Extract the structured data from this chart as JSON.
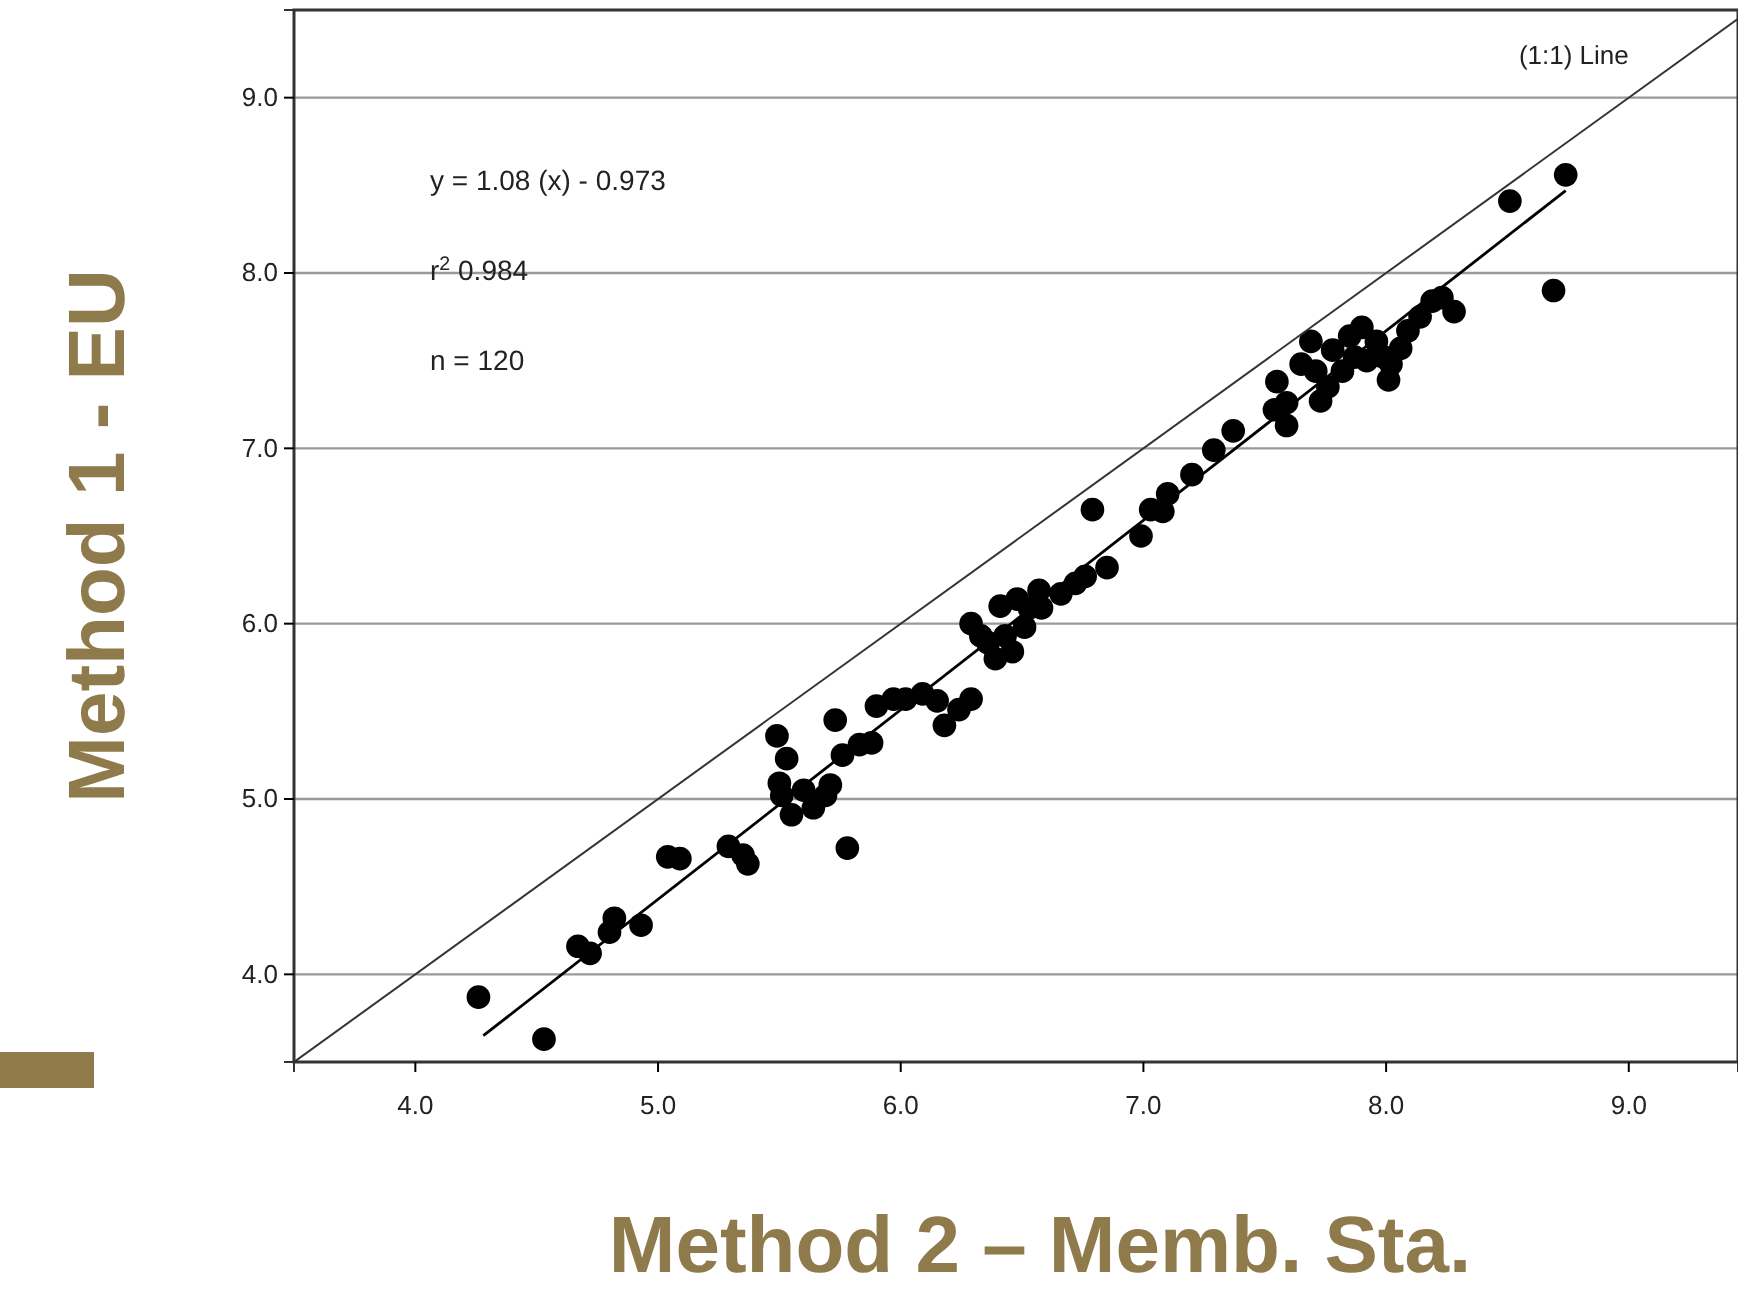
{
  "chart_data": {
    "type": "scatter",
    "xlabel": "Method 2 – Memb. Sta.",
    "ylabel": "Method 1 - EU",
    "xlim": [
      3.5,
      9.45
    ],
    "ylim": [
      3.5,
      9.5
    ],
    "xticks": [
      {
        "value": 4,
        "label": "4.0"
      },
      {
        "value": 5,
        "label": "5.0"
      },
      {
        "value": 6,
        "label": "6.0"
      },
      {
        "value": 7,
        "label": "7.0"
      },
      {
        "value": 8,
        "label": "8.0"
      },
      {
        "value": 9,
        "label": "9.0"
      }
    ],
    "yticks": [
      {
        "value": 4,
        "label": "4.0"
      },
      {
        "value": 5,
        "label": "5.0"
      },
      {
        "value": 6,
        "label": "6.0"
      },
      {
        "value": 7,
        "label": "7.0"
      },
      {
        "value": 8,
        "label": "8.0"
      },
      {
        "value": 9,
        "label": "9.0"
      }
    ],
    "grid": "y",
    "annotations": [
      "y = 1.08 (x) - 0.973",
      "r$^{2}$ 0.984",
      "n = 120"
    ],
    "series": [
      {
        "marker": "circle",
        "color": "#000000",
        "x": [
          4.26,
          4.53,
          4.67,
          4.72,
          4.8,
          4.82,
          4.93,
          5.04,
          5.09,
          5.29,
          5.35,
          5.37,
          5.49,
          5.51,
          5.5,
          5.53,
          5.55,
          5.6,
          5.64,
          5.69,
          5.71,
          5.73,
          5.76,
          5.78,
          5.83,
          5.88,
          5.9,
          5.97,
          6.02,
          6.09,
          6.15,
          6.18,
          6.24,
          6.29,
          6.29,
          6.33,
          6.36,
          6.39,
          6.41,
          6.43,
          6.46,
          6.48,
          6.51,
          6.53,
          6.57,
          6.58,
          6.66,
          6.72,
          6.76,
          6.79,
          6.85,
          6.99,
          7.03,
          7.08,
          7.1,
          7.2,
          7.29,
          7.37,
          7.54,
          7.55,
          7.59,
          7.59,
          7.65,
          7.69,
          7.71,
          7.73,
          7.76,
          7.78,
          7.82,
          7.85,
          7.87,
          7.9,
          7.92,
          7.96,
          7.99,
          8.02,
          8.01,
          8.06,
          8.09,
          8.14,
          8.19,
          8.23,
          8.28,
          8.51,
          8.69,
          8.74
        ],
        "values": [
          3.87,
          3.63,
          4.16,
          4.12,
          4.24,
          4.32,
          4.28,
          4.67,
          4.66,
          4.73,
          4.68,
          4.63,
          5.36,
          5.02,
          5.09,
          5.23,
          4.91,
          5.05,
          4.95,
          5.02,
          5.08,
          5.45,
          5.25,
          4.72,
          5.31,
          5.32,
          5.53,
          5.57,
          5.57,
          5.6,
          5.56,
          5.42,
          5.51,
          5.57,
          6.0,
          5.93,
          5.89,
          5.8,
          6.1,
          5.93,
          5.84,
          6.14,
          5.98,
          6.09,
          6.19,
          6.09,
          6.17,
          6.23,
          6.27,
          6.65,
          6.32,
          6.5,
          6.65,
          6.64,
          6.74,
          6.85,
          6.99,
          7.1,
          7.22,
          7.38,
          7.13,
          7.26,
          7.48,
          7.61,
          7.44,
          7.27,
          7.35,
          7.56,
          7.44,
          7.64,
          7.52,
          7.69,
          7.5,
          7.61,
          7.52,
          7.48,
          7.39,
          7.57,
          7.67,
          7.75,
          7.84,
          7.86,
          7.78,
          8.41,
          7.9,
          8.56
        ]
      },
      {
        "type": "line",
        "marker": "none",
        "color": "#000000",
        "x": [
          4.28,
          8.74
        ],
        "values": [
          3.65,
          8.47
        ]
      },
      {
        "type": "line",
        "marker": "none",
        "name": "(1:1) Line",
        "color": "#333333",
        "x": [
          3.5,
          9.45
        ],
        "values": [
          3.5,
          9.45
        ]
      }
    ]
  }
}
